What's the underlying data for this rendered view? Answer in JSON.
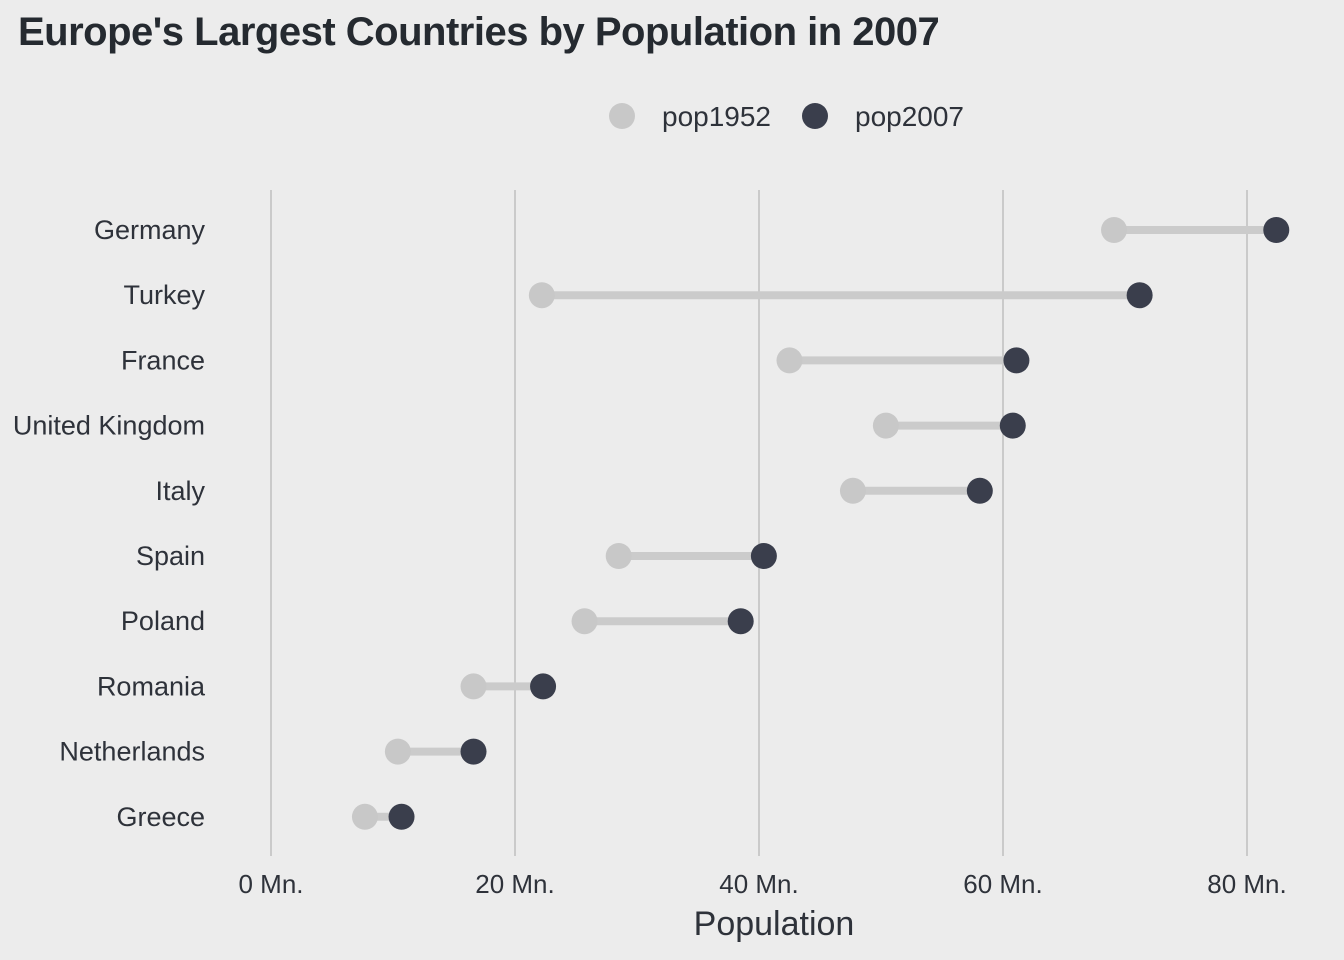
{
  "title": "Europe's Largest Countries by Population in 2007",
  "chart_data": {
    "type": "dumbbell",
    "title": "Europe's Largest Countries by Population in 2007",
    "xlabel": "Population",
    "ylabel": "",
    "xlim": [
      0,
      80
    ],
    "x_ticks": [
      0,
      20,
      40,
      60,
      80
    ],
    "x_tick_labels": [
      "0 Mn.",
      "20 Mn.",
      "40 Mn.",
      "60 Mn.",
      "80 Mn."
    ],
    "grid": "vertical",
    "legend_position": "top",
    "categories": [
      "Germany",
      "Turkey",
      "France",
      "United Kingdom",
      "Italy",
      "Spain",
      "Poland",
      "Romania",
      "Netherlands",
      "Greece"
    ],
    "series": [
      {
        "name": "pop1952",
        "color": "#c8c8c8",
        "values": [
          69.1,
          22.2,
          42.5,
          50.4,
          47.7,
          28.5,
          25.7,
          16.6,
          10.4,
          7.7
        ]
      },
      {
        "name": "pop2007",
        "color": "#3a3e4c",
        "values": [
          82.4,
          71.2,
          61.1,
          60.8,
          58.1,
          40.4,
          38.5,
          22.3,
          16.6,
          10.7
        ]
      }
    ],
    "connector_color": "#cbcbcb",
    "gridline_color": "#b4b4b4"
  }
}
